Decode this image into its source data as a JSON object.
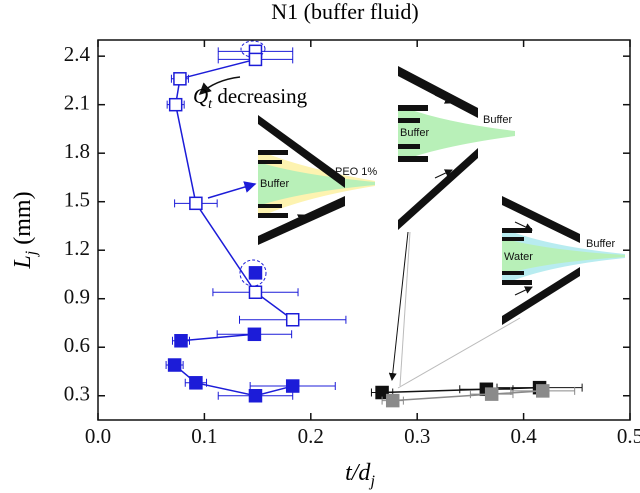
{
  "chart_data": {
    "type": "scatter",
    "title": "N1 (buffer fluid)",
    "xlabel": {
      "main": "t/d",
      "sub": "j"
    },
    "ylabel": {
      "main": "L",
      "sub": "j",
      "unit": " (mm)"
    },
    "annotation": {
      "main": "Q",
      "sub": "t",
      "rest": " decreasing"
    },
    "inset_labels": [
      "PEO 1%",
      "Buffer",
      "Buffer",
      "Buffer",
      "Buffer",
      "Water"
    ],
    "xlim": [
      0,
      0.5
    ],
    "ylim": [
      0.15,
      2.5
    ],
    "xticks": [
      {
        "value": 0,
        "label": "0.0"
      },
      0.1,
      0.2,
      0.3,
      0.4,
      0.5
    ],
    "yticks": [
      0.3,
      0.6,
      0.9,
      1.2,
      1.5,
      1.8,
      2.1,
      2.4
    ],
    "series": [
      {
        "color": "#1c1cd8",
        "marker": "open",
        "x": [
          0.148,
          0.148,
          0.077,
          0.073,
          0.092,
          0.148,
          0.183
        ],
        "values": [
          2.43,
          2.38,
          2.26,
          2.1,
          1.49,
          0.94,
          0.77
        ],
        "xerr": [
          0.035,
          0.035,
          0.008,
          0.008,
          0.02,
          0.04,
          0.05
        ]
      },
      {
        "color": "#1c1cd8",
        "marker": "filled",
        "x": [
          0.148,
          null,
          0.147,
          0.078,
          null,
          0.072,
          0.092,
          0.148,
          0.183
        ],
        "values": [
          1.06,
          null,
          0.68,
          0.64,
          null,
          0.49,
          0.38,
          0.3,
          0.36
        ],
        "xerr": [
          0.004,
          null,
          0.035,
          0.008,
          null,
          0.008,
          0.01,
          0.035,
          0.04
        ]
      },
      {
        "color": "#111111",
        "marker": "filled",
        "x": [
          0.267,
          0.365,
          0.415
        ],
        "values": [
          0.32,
          0.34,
          0.35
        ],
        "xerr": [
          0.01,
          0.025,
          0.04
        ]
      },
      {
        "color": "#8a8a8a",
        "marker": "filled",
        "x": [
          0.277,
          0.37,
          0.418
        ],
        "values": [
          0.27,
          0.31,
          0.33
        ],
        "xerr": [
          0.01,
          0.02,
          0.03
        ]
      }
    ]
  }
}
